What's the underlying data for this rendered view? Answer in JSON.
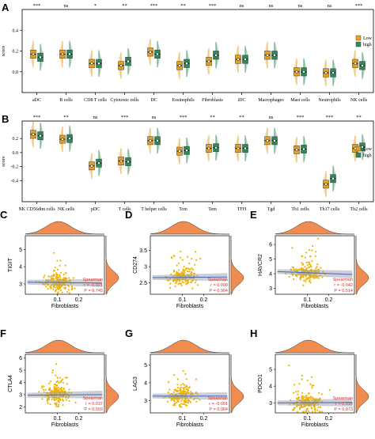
{
  "chart_data": [
    {
      "panel": "A",
      "type": "box",
      "ylabel": "score",
      "ylim": [
        -0.2,
        0.6
      ],
      "yticks": [
        0.0,
        0.2,
        0.4
      ],
      "legend": [
        "Low",
        "high"
      ],
      "series_colors": [
        "#e8a020",
        "#2e8b57"
      ],
      "categories": [
        "aDC",
        "B cells",
        "CD8 T cells",
        "Cytotoxic cells",
        "DC",
        "Eosinophils",
        "Fibroblasts",
        "iDC",
        "Macrophages",
        "Mast cells",
        "Neutrophils",
        "NK cells"
      ],
      "significance": [
        "***",
        "ns",
        "*",
        "**",
        "***",
        "**",
        "***",
        "ns",
        "ns",
        "ns",
        "ns",
        "***"
      ],
      "series": [
        {
          "name": "Low",
          "medians": [
            0.17,
            0.17,
            0.08,
            0.06,
            0.19,
            0.06,
            0.1,
            0.12,
            0.16,
            0.0,
            -0.01,
            0.08
          ]
        },
        {
          "name": "high",
          "medians": [
            0.14,
            0.17,
            0.08,
            0.1,
            0.17,
            0.08,
            0.16,
            0.12,
            0.16,
            0.0,
            -0.01,
            0.06
          ]
        }
      ]
    },
    {
      "panel": "B",
      "type": "box",
      "ylabel": "score",
      "ylim": [
        -0.7,
        0.45
      ],
      "yticks": [
        -0.4,
        -0.2,
        0.0,
        0.2
      ],
      "legend": [
        "Low",
        "high"
      ],
      "series_colors": [
        "#e8a020",
        "#2e8b57"
      ],
      "categories": [
        "NK CD56dim cells",
        "NK cells",
        "pDC",
        "T cells",
        "T helper cells",
        "Tcm",
        "Tem",
        "TFH",
        "Tgd",
        "Th1 cells",
        "Th17 cells",
        "Th2 cells"
      ],
      "significance": [
        "***",
        "**",
        "ns",
        "***",
        "ns",
        "***",
        "**",
        "**",
        "ns",
        "***",
        "***",
        "**"
      ],
      "series": [
        {
          "name": "Low",
          "medians": [
            0.26,
            0.19,
            -0.19,
            -0.12,
            0.17,
            0.02,
            0.06,
            0.06,
            0.17,
            0.04,
            -0.45,
            0.06
          ]
        },
        {
          "name": "high",
          "medians": [
            0.24,
            0.2,
            -0.15,
            -0.13,
            0.17,
            0.03,
            0.07,
            0.06,
            0.17,
            0.05,
            -0.37,
            0.08
          ]
        }
      ]
    },
    {
      "panel": "C",
      "type": "scatter",
      "xlabel": "Fibroblasts",
      "ylabel": "TIGIT",
      "method": "Spearman",
      "r": "r = -0.021",
      "p": "P = 0.745",
      "yticks": [
        3,
        4,
        5
      ],
      "ylim": [
        2.4,
        5.8
      ],
      "xticks": [
        0.1,
        0.2
      ],
      "xlim": [
        -0.05,
        0.32
      ],
      "fit": [
        3.1,
        3.05
      ]
    },
    {
      "panel": "D",
      "type": "scatter",
      "xlabel": "Fibroblasts",
      "ylabel": "CD274",
      "method": "Spearman",
      "r": "r = 0.008",
      "p": "P = 0.904",
      "yticks": [
        2.5,
        3.0,
        3.5
      ],
      "ylim": [
        2.15,
        3.95
      ],
      "xticks": [
        0.1,
        0.2
      ],
      "xlim": [
        -0.05,
        0.32
      ],
      "fit": [
        2.66,
        2.68
      ]
    },
    {
      "panel": "E",
      "type": "scatter",
      "xlabel": "Fibroblasts",
      "ylabel": "HAVCR2",
      "method": "Spearman",
      "r": "r = -0.042",
      "p": "P = 0.514",
      "yticks": [
        3,
        4,
        5,
        6
      ],
      "ylim": [
        2.6,
        6.6
      ],
      "xticks": [
        0.1,
        0.2
      ],
      "xlim": [
        -0.05,
        0.32
      ],
      "fit": [
        4.15,
        3.95
      ]
    },
    {
      "panel": "F",
      "type": "scatter",
      "xlabel": "Fibroblasts",
      "ylabel": "CTLA4",
      "method": "Spearman",
      "r": "r = 0.037",
      "p": "P = 0.569",
      "yticks": [
        2,
        3,
        4,
        5,
        6
      ],
      "ylim": [
        1.5,
        6.3
      ],
      "xticks": [
        0.1,
        0.2
      ],
      "xlim": [
        -0.05,
        0.32
      ],
      "fit": [
        2.95,
        3.0
      ]
    },
    {
      "panel": "G",
      "type": "scatter",
      "xlabel": "Fibroblasts",
      "ylabel": "LAG3",
      "method": "Spearman",
      "r": "r = -0.001",
      "p": "P = 0.984",
      "yticks": [
        3,
        4,
        5
      ],
      "ylim": [
        2.3,
        5.6
      ],
      "xticks": [
        0.1,
        0.2
      ],
      "xlim": [
        -0.05,
        0.32
      ],
      "fit": [
        3.25,
        3.25
      ]
    },
    {
      "panel": "H",
      "type": "scatter",
      "xlabel": "Fibroblasts",
      "ylabel": "PDCD1",
      "method": "Spearman",
      "r": "r = 0.010",
      "p": "P = 0.873",
      "yticks": [
        3,
        4,
        5
      ],
      "ylim": [
        2.4,
        5.9
      ],
      "xticks": [
        0.1,
        0.2
      ],
      "xlim": [
        -0.05,
        0.32
      ],
      "fit": [
        3.0,
        3.02
      ]
    }
  ],
  "colors": {
    "low": "#e8a020",
    "high": "#2e8b57",
    "points": "#f0b400",
    "density": "#f08c50",
    "fit": "#4a66b8",
    "stats": "#e03030"
  }
}
